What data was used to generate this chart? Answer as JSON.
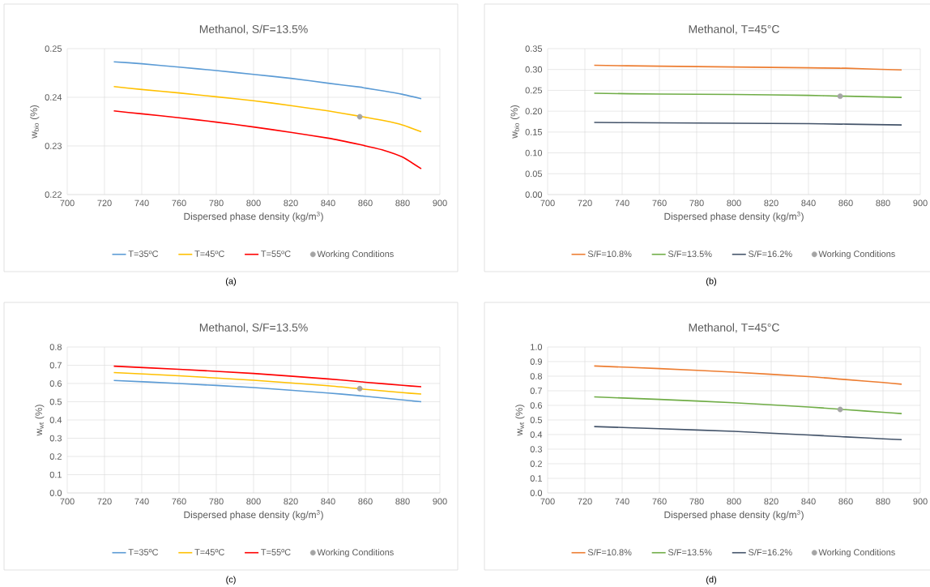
{
  "chart_data": [
    {
      "type": "line",
      "title": "Methanol, S/F=13.5%",
      "xlabel": "Dispersed phase density (kg/m$^{3}$)",
      "ylabel": "w$_{bio}$ (%)",
      "annotations": [
        "(a)"
      ],
      "x": [
        725,
        740,
        760,
        780,
        800,
        820,
        840,
        857,
        860,
        870,
        880,
        890
      ],
      "series": [
        {
          "name": "T=35ºC",
          "color": "#5b9bd5",
          "values": [
            0.2473,
            0.2469,
            0.2462,
            0.2455,
            0.2447,
            0.2439,
            0.2429,
            0.2421,
            0.2419,
            0.2413,
            0.2406,
            0.2397
          ]
        },
        {
          "name": "T=45ºC",
          "color": "#ffc000",
          "values": [
            0.2422,
            0.2416,
            0.2409,
            0.2401,
            0.2393,
            0.2383,
            0.2372,
            0.2361,
            0.2359,
            0.2352,
            0.2343,
            0.2329
          ]
        },
        {
          "name": "T=55ºC",
          "color": "#ff0000",
          "values": [
            0.2372,
            0.2366,
            0.2358,
            0.2349,
            0.2339,
            0.2328,
            0.2316,
            0.2303,
            0.23,
            0.2291,
            0.2277,
            0.2253
          ]
        },
        {
          "name": "Working Conditions",
          "type": "scatter",
          "marker": "circle",
          "color": "#a5a5a5",
          "values": [
            null,
            null,
            null,
            null,
            null,
            null,
            null,
            0.236,
            null,
            null,
            null,
            null
          ]
        }
      ],
      "xlim": [
        700,
        900
      ],
      "xticks": [
        700,
        720,
        740,
        760,
        780,
        800,
        820,
        840,
        860,
        880,
        900
      ],
      "ylim": [
        0.22,
        0.25
      ],
      "yticks": [
        0.22,
        0.23,
        0.24,
        0.25
      ],
      "grid": true,
      "legend": "bottom"
    },
    {
      "type": "line",
      "title": "Methanol, T=45°C",
      "xlabel": "Dispersed phase density (kg/m$^{3}$)",
      "ylabel": "w$_{bio}$ (%)",
      "annotations": [
        "(b)"
      ],
      "x": [
        725,
        760,
        800,
        840,
        857,
        860,
        890
      ],
      "series": [
        {
          "name": "S/F=10.8%",
          "color": "#ed7d31",
          "values": [
            0.31,
            0.308,
            0.306,
            0.304,
            0.303,
            0.303,
            0.299
          ]
        },
        {
          "name": "S/F=13.5%",
          "color": "#70ad47",
          "values": [
            0.243,
            0.241,
            0.24,
            0.238,
            0.236,
            0.236,
            0.233
          ]
        },
        {
          "name": "S/F=16.2%",
          "color": "#44546a",
          "values": [
            0.173,
            0.172,
            0.171,
            0.17,
            0.169,
            0.169,
            0.167
          ]
        },
        {
          "name": "Working Conditions",
          "type": "scatter",
          "marker": "circle",
          "color": "#a5a5a5",
          "values": [
            null,
            null,
            null,
            null,
            0.236,
            null,
            null
          ]
        }
      ],
      "xlim": [
        700,
        900
      ],
      "xticks": [
        700,
        720,
        740,
        760,
        780,
        800,
        820,
        840,
        860,
        880,
        900
      ],
      "ylim": [
        0,
        0.35
      ],
      "yticks": [
        {
          "value": 0,
          "label": "0.00"
        },
        {
          "value": 0.05,
          "label": "0.05"
        },
        {
          "value": 0.1,
          "label": "0.10"
        },
        {
          "value": 0.15,
          "label": "0.15"
        },
        {
          "value": 0.2,
          "label": "0.20"
        },
        {
          "value": 0.25,
          "label": "0.25"
        },
        {
          "value": 0.3,
          "label": "0.30"
        },
        {
          "value": 0.35,
          "label": "0.35"
        }
      ],
      "grid": true,
      "legend": "bottom"
    },
    {
      "type": "line",
      "title": "Methanol, S/F=13.5%",
      "xlabel": "Dispersed phase density (kg/m$^{3}$)",
      "ylabel": "w$_{wt}$ (%)",
      "annotations": [
        "(c)"
      ],
      "x": [
        725,
        760,
        800,
        840,
        857,
        860,
        880,
        890
      ],
      "series": [
        {
          "name": "T=35ºC",
          "color": "#5b9bd5",
          "values": [
            0.617,
            0.6,
            0.578,
            0.548,
            0.533,
            0.53,
            0.51,
            0.5
          ]
        },
        {
          "name": "T=45ºC",
          "color": "#ffc000",
          "values": [
            0.66,
            0.642,
            0.618,
            0.588,
            0.571,
            0.568,
            0.55,
            0.542
          ]
        },
        {
          "name": "T=55ºC",
          "color": "#ff0000",
          "values": [
            0.695,
            0.678,
            0.655,
            0.625,
            0.61,
            0.607,
            0.59,
            0.582
          ]
        },
        {
          "name": "Working Conditions",
          "type": "scatter",
          "marker": "circle",
          "color": "#a5a5a5",
          "values": [
            null,
            null,
            null,
            null,
            0.572,
            null,
            null,
            null
          ]
        }
      ],
      "xlim": [
        700,
        900
      ],
      "xticks": [
        700,
        720,
        740,
        760,
        780,
        800,
        820,
        840,
        860,
        880,
        900
      ],
      "ylim": [
        0,
        0.8
      ],
      "yticks": [
        {
          "value": 0,
          "label": "0.0"
        },
        0.1,
        0.2,
        0.3,
        0.4,
        0.5,
        0.6,
        0.7,
        0.8
      ],
      "grid": true,
      "legend": "bottom"
    },
    {
      "type": "line",
      "title": "Methanol, T=45°C",
      "xlabel": "Dispersed phase density (kg/m$^{3}$)",
      "ylabel": "w$_{wt}$ (%)",
      "annotations": [
        "(d)"
      ],
      "x": [
        725,
        760,
        800,
        840,
        857,
        860,
        880,
        890
      ],
      "series": [
        {
          "name": "S/F=10.8%",
          "color": "#ed7d31",
          "values": [
            0.87,
            0.852,
            0.828,
            0.797,
            0.78,
            0.777,
            0.757,
            0.745
          ]
        },
        {
          "name": "S/F=13.5%",
          "color": "#70ad47",
          "values": [
            0.658,
            0.641,
            0.618,
            0.589,
            0.574,
            0.571,
            0.553,
            0.544
          ]
        },
        {
          "name": "S/F=16.2%",
          "color": "#44546a",
          "values": [
            0.455,
            0.44,
            0.422,
            0.397,
            0.386,
            0.384,
            0.371,
            0.365
          ]
        },
        {
          "name": "Working Conditions",
          "type": "scatter",
          "marker": "circle",
          "color": "#a5a5a5",
          "values": [
            null,
            null,
            null,
            null,
            0.572,
            null,
            null,
            null
          ]
        }
      ],
      "xlim": [
        700,
        900
      ],
      "xticks": [
        700,
        720,
        740,
        760,
        780,
        800,
        820,
        840,
        860,
        880,
        900
      ],
      "ylim": [
        0,
        1.0
      ],
      "yticks": [
        {
          "value": 0,
          "label": "0.0"
        },
        0.1,
        0.2,
        0.3,
        0.4,
        0.5,
        0.6,
        0.7,
        0.8,
        0.9,
        {
          "value": 1.0,
          "label": "1.0"
        }
      ],
      "grid": true,
      "legend": "bottom"
    }
  ]
}
